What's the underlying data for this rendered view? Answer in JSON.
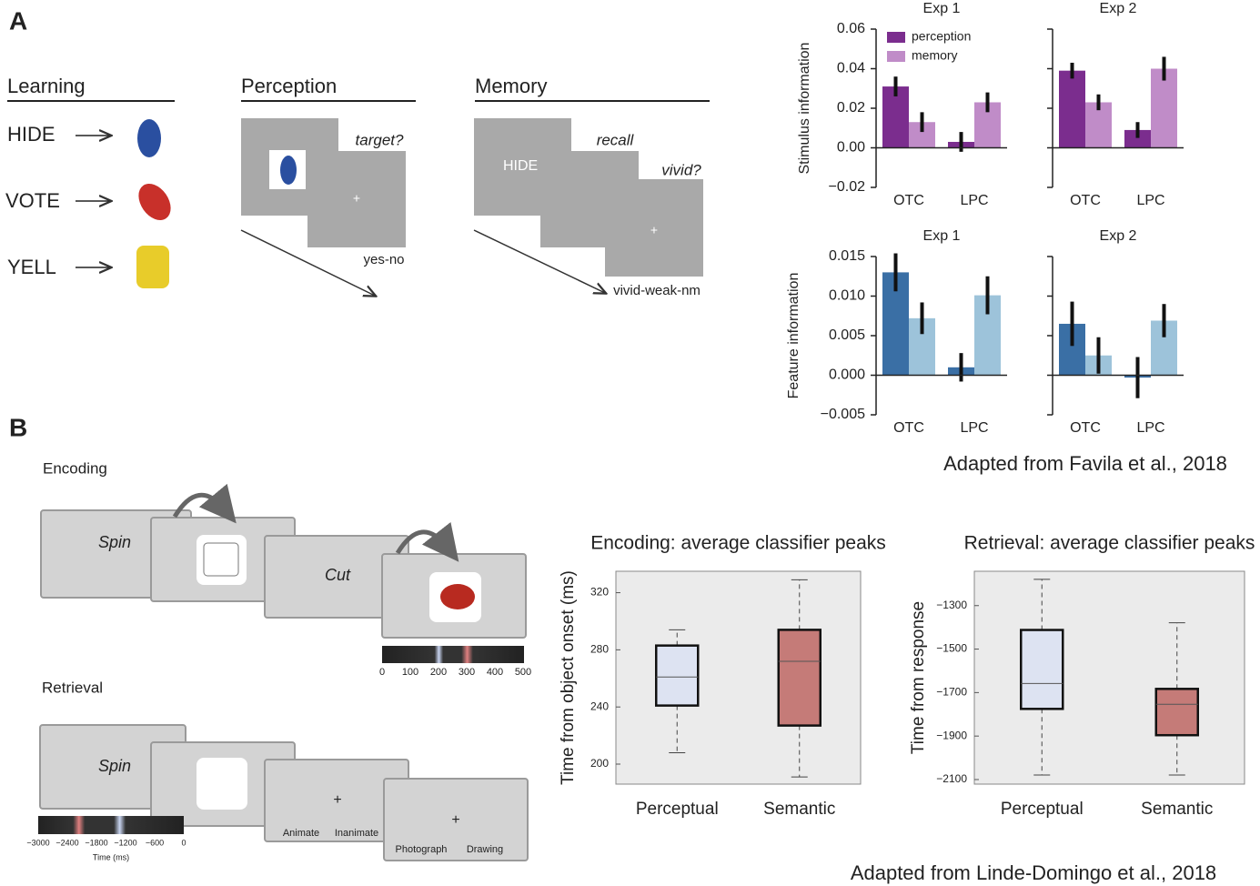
{
  "panel_labels": [
    "A",
    "B"
  ],
  "learning": {
    "title": "Learning",
    "words": [
      "HIDE",
      "VOTE",
      "YELL"
    ]
  },
  "perception": {
    "title": "Perception",
    "question": "target?",
    "response": "yes-no"
  },
  "memory": {
    "title": "Memory",
    "cue": "HIDE",
    "recall": "recall",
    "question": "vivid?",
    "response": "vivid-weak-nm"
  },
  "citation_a": "Adapted from Favila et al., 2018",
  "encoding": {
    "title": "Encoding",
    "words": [
      "Spin",
      "Cut"
    ],
    "timeline_ticks": [
      "0",
      "100",
      "200",
      "300",
      "400",
      "500"
    ]
  },
  "retrieval": {
    "title": "Retrieval",
    "word": "Spin",
    "options": [
      "Animate",
      "Inanimate"
    ],
    "options2": [
      "Photograph",
      "Drawing"
    ],
    "timeline_ticks": [
      "−3000",
      "−2400",
      "−1800",
      "−1200",
      "−600",
      "0"
    ],
    "timeline_label": "Time (ms)"
  },
  "citation_b": "Adapted from Linde-Domingo et al., 2018",
  "chart_data": [
    {
      "type": "bar",
      "title": "Exp 1",
      "ylabel": "Stimulus information",
      "categories": [
        "OTC",
        "LPC"
      ],
      "legend": "upper left",
      "series": [
        {
          "name": "perception",
          "color": "#7b2d8e",
          "values": [
            0.031,
            0.003
          ],
          "errors": [
            0.005,
            0.005
          ]
        },
        {
          "name": "memory",
          "color": "#c08cc8",
          "values": [
            0.013,
            0.023
          ],
          "errors": [
            0.005,
            0.005
          ]
        }
      ],
      "ylim": [
        -0.02,
        0.06
      ],
      "yticks": [
        {
          "value": -0.02,
          "label": "−0.02"
        },
        {
          "value": 0,
          "label": "0.00"
        },
        0.02,
        0.04,
        0.06
      ]
    },
    {
      "type": "bar",
      "title": "Exp 2",
      "categories": [
        "OTC",
        "LPC"
      ],
      "tick_labels": false,
      "series": [
        {
          "color": "#7b2d8e",
          "values": [
            0.039,
            0.009
          ],
          "errors": [
            0.004,
            0.004
          ]
        },
        {
          "color": "#c08cc8",
          "values": [
            0.023,
            0.04
          ],
          "errors": [
            0.004,
            0.006
          ]
        }
      ],
      "ylim": [
        -0.02,
        0.06
      ],
      "yticks": [
        -0.02,
        0,
        0.02,
        0.04,
        0.06
      ]
    },
    {
      "type": "bar",
      "title": "Exp 1",
      "ylabel": "Feature information",
      "categories": [
        "OTC",
        "LPC"
      ],
      "series": [
        {
          "color": "#3a6fa5",
          "values": [
            0.013,
            0.001
          ],
          "errors": [
            0.0024,
            0.0018
          ]
        },
        {
          "color": "#9dc3da",
          "values": [
            0.0072,
            0.0101
          ],
          "errors": [
            0.002,
            0.0024
          ]
        }
      ],
      "ylim": [
        -0.005,
        0.015
      ],
      "yticks": [
        {
          "value": -0.005,
          "label": "−0.005"
        },
        {
          "value": 0,
          "label": "0.000"
        },
        0.005,
        {
          "value": 0.01,
          "label": "0.010"
        },
        0.015
      ]
    },
    {
      "type": "bar",
      "title": "Exp 2",
      "categories": [
        "OTC",
        "LPC"
      ],
      "tick_labels": false,
      "series": [
        {
          "color": "#3a6fa5",
          "values": [
            0.0065,
            -0.0003
          ],
          "errors": [
            0.0028,
            0.0026
          ]
        },
        {
          "color": "#9dc3da",
          "values": [
            0.0025,
            0.0069
          ],
          "errors": [
            0.0023,
            0.0021
          ]
        }
      ],
      "ylim": [
        -0.005,
        0.015
      ],
      "yticks": [
        -0.005,
        0,
        0.005,
        0.01,
        0.015
      ]
    },
    {
      "type": "box",
      "title": "Encoding: average classifier peaks",
      "ylabel": "Time from object onset (ms)",
      "categories": [
        "Perceptual",
        "Semantic"
      ],
      "background": "#ebebeb",
      "boxes": [
        {
          "min": 208,
          "q1": 241,
          "median": 261,
          "q3": 283,
          "max": 294,
          "color": "#dde3f2"
        },
        {
          "min": 191,
          "q1": 227,
          "median": 272,
          "q3": 294,
          "max": 329,
          "color": "#c57b78"
        }
      ],
      "ylim": [
        186,
        335
      ],
      "yticks": [
        200,
        240,
        280,
        320
      ]
    },
    {
      "type": "box",
      "title": "Retrieval: average classifier peaks",
      "ylabel": "Time from response",
      "categories": [
        "Perceptual",
        "Semantic"
      ],
      "background": "#ebebeb",
      "boxes": [
        {
          "min": -2079,
          "q1": -1775,
          "median": -1658,
          "q3": -1412,
          "max": -1179,
          "color": "#dde3f2"
        },
        {
          "min": -2079,
          "q1": -1896,
          "median": -1754,
          "q3": -1683,
          "max": -1379,
          "color": "#c57b78"
        }
      ],
      "ylim": [
        -2121,
        -1142
      ],
      "yticks": [
        {
          "value": -2100,
          "label": "−2100"
        },
        {
          "value": -1900,
          "label": "−1900"
        },
        {
          "value": -1700,
          "label": "−1700"
        },
        {
          "value": -1500,
          "label": "−1500"
        },
        {
          "value": -1300,
          "label": "−1300"
        }
      ]
    }
  ]
}
